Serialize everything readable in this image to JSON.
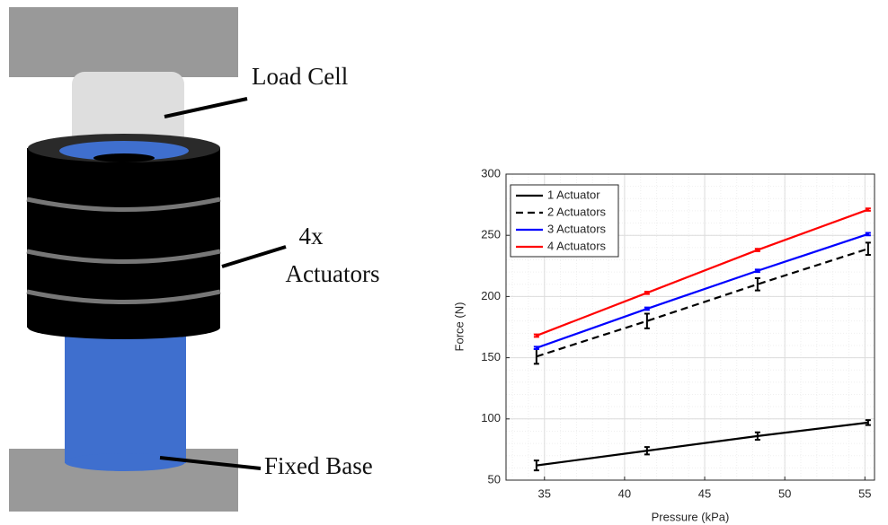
{
  "diagram": {
    "load_cell": "Load Cell",
    "actuators": [
      "4x",
      "Actuators"
    ],
    "fixed_base": "Fixed Base"
  },
  "chart_data": {
    "type": "line",
    "x_label": "Pressure (kPa)",
    "y_label": "Force (N)",
    "x": [
      34.5,
      41.4,
      48.3,
      55.2
    ],
    "series": [
      {
        "name": "1 Actuator",
        "color": "#000000",
        "dash": "solid",
        "values": [
          62,
          74,
          86,
          97
        ],
        "errors": [
          4,
          3,
          3,
          2
        ]
      },
      {
        "name": "2 Actuators",
        "color": "#000000",
        "dash": "dashed",
        "values": [
          151,
          180,
          210,
          239
        ],
        "errors": [
          6,
          6,
          5,
          5
        ]
      },
      {
        "name": "3 Actuators",
        "color": "#0000ff",
        "dash": "solid",
        "values": [
          158,
          190,
          221,
          251
        ],
        "errors": [
          1,
          1,
          1,
          1
        ]
      },
      {
        "name": "4 Actuators",
        "color": "#ff0000",
        "dash": "solid",
        "values": [
          168,
          203,
          238,
          271
        ],
        "errors": [
          1,
          1,
          1,
          1
        ]
      }
    ],
    "xlim": [
      32.6,
      55.6
    ],
    "xticks": [
      35,
      40,
      45,
      50,
      55
    ],
    "ylim": [
      50,
      300
    ],
    "yticks": [
      50,
      100,
      150,
      200,
      250,
      300
    ],
    "grid": true,
    "minor_grid": true,
    "legend": "upper left"
  }
}
